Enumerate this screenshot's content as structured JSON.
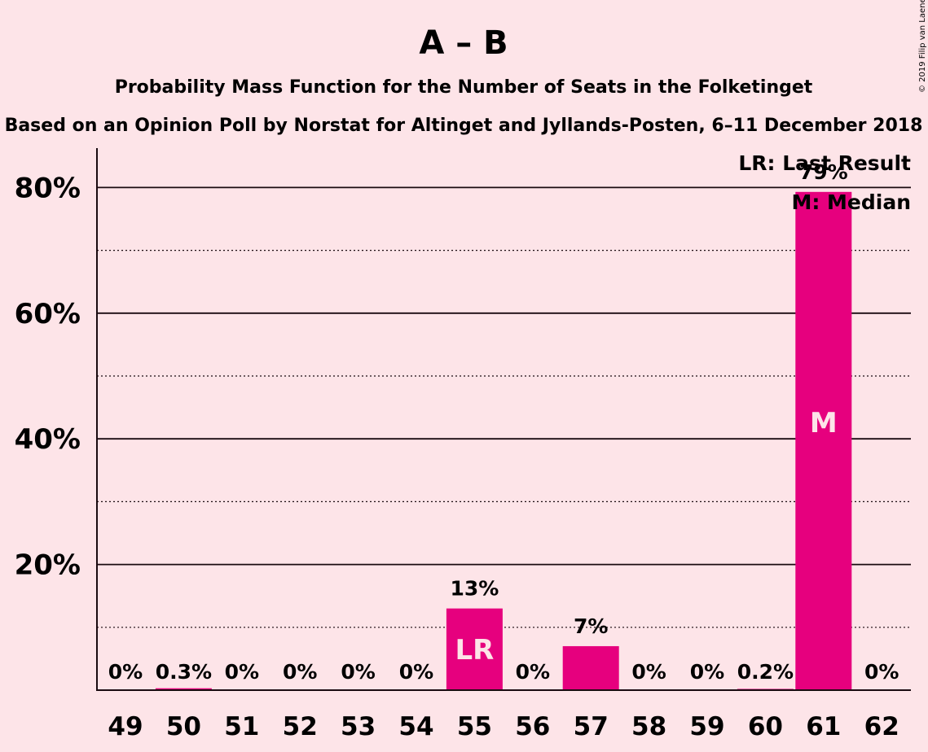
{
  "chart_data": {
    "type": "bar",
    "title": "A – B",
    "subtitle": "Probability Mass Function for the Number of Seats in the Folketinget",
    "subtitle2": "Based on an Opinion Poll by Norstat for Altinget and Jyllands-Posten, 6–11 December 2018",
    "copyright": "© 2019 Filip van Laenen",
    "categories": [
      "49",
      "50",
      "51",
      "52",
      "53",
      "54",
      "55",
      "56",
      "57",
      "58",
      "59",
      "60",
      "61",
      "62"
    ],
    "values": [
      0,
      0.3,
      0,
      0,
      0,
      0,
      13,
      0,
      7,
      0,
      0,
      0.2,
      79.3,
      0
    ],
    "value_labels": [
      "0%",
      "0.3%",
      "0%",
      "0%",
      "0%",
      "0%",
      "13%",
      "0%",
      "7%",
      "0%",
      "0%",
      "0.2%",
      "79%",
      "0%"
    ],
    "bar_inner_labels": {
      "55": "LR",
      "61": "M"
    },
    "ylim": [
      0,
      86
    ],
    "y_ticks": [
      20,
      40,
      60,
      80
    ],
    "y_tick_labels": [
      "20%",
      "40%",
      "60%",
      "80%"
    ],
    "y_minor_ticks": [
      10,
      30,
      50,
      70
    ],
    "grid": true,
    "bar_color": "#e6007e",
    "legend_position": "top-right",
    "legend": [
      "LR: Last Result",
      "M: Median"
    ]
  }
}
